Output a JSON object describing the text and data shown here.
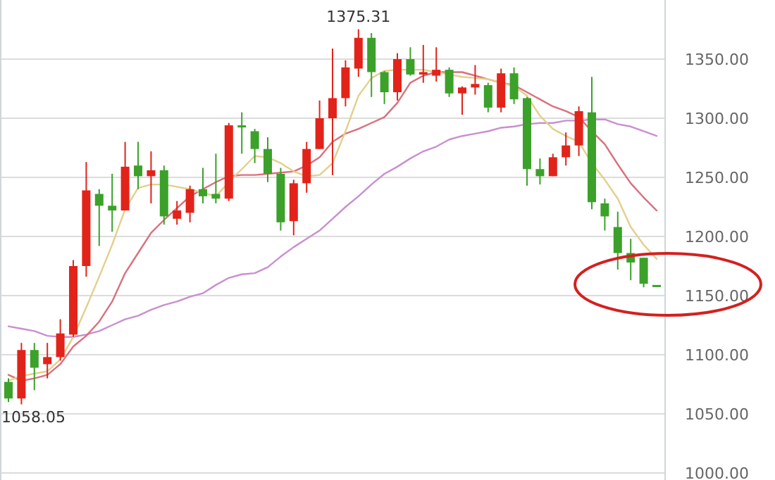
{
  "chart_data": {
    "type": "candlestick",
    "categories": [
      null,
      null,
      null,
      null,
      null,
      null,
      null,
      null,
      null,
      null,
      null,
      null,
      null,
      null,
      null,
      null,
      null,
      null,
      null,
      null,
      null,
      null,
      null,
      null,
      null,
      null,
      null,
      null,
      null,
      null,
      null,
      null,
      null,
      null,
      null,
      null,
      null,
      null,
      null,
      null,
      null,
      null,
      null,
      null,
      null,
      null,
      null,
      null,
      null,
      null,
      null
    ],
    "ohlc": [
      [
        1077,
        1080,
        1060,
        1063
      ],
      [
        1063,
        1110,
        1058.05,
        1104
      ],
      [
        1104,
        1110,
        1070,
        1089
      ],
      [
        1092,
        1110,
        1080,
        1098
      ],
      [
        1098,
        1130,
        1095,
        1118
      ],
      [
        1117,
        1180,
        1115,
        1175
      ],
      [
        1175,
        1263,
        1166,
        1239
      ],
      [
        1236,
        1240,
        1192,
        1226
      ],
      [
        1226,
        1253,
        1204,
        1222
      ],
      [
        1222,
        1280,
        1222,
        1259
      ],
      [
        1260,
        1280,
        1240,
        1251
      ],
      [
        1251,
        1272,
        1228,
        1256
      ],
      [
        1256,
        1260,
        1210,
        1217
      ],
      [
        1215,
        1230,
        1210,
        1222
      ],
      [
        1220,
        1243,
        1212,
        1240
      ],
      [
        1240,
        1258,
        1228,
        1234
      ],
      [
        1236,
        1270,
        1228,
        1232
      ],
      [
        1232,
        1296,
        1230,
        1294
      ],
      [
        1294,
        1305,
        1270,
        1293
      ],
      [
        1289,
        1291,
        1262,
        1274
      ],
      [
        1274,
        1284,
        1246,
        1253
      ],
      [
        1253,
        1258,
        1205,
        1212
      ],
      [
        1213,
        1248,
        1201,
        1245
      ],
      [
        1245,
        1280,
        1237,
        1274
      ],
      [
        1274,
        1315,
        1274,
        1300
      ],
      [
        1300,
        1359,
        1252,
        1317
      ],
      [
        1317,
        1349,
        1310,
        1343
      ],
      [
        1342,
        1375.31,
        1335,
        1368
      ],
      [
        1368,
        1372,
        1318,
        1339
      ],
      [
        1339,
        1340,
        1312,
        1322
      ],
      [
        1322,
        1355,
        1315,
        1350
      ],
      [
        1350,
        1360,
        1336,
        1337
      ],
      [
        1337,
        1362,
        1330,
        1339
      ],
      [
        1336,
        1360,
        1331,
        1341
      ],
      [
        1341,
        1343,
        1318,
        1321
      ],
      [
        1321,
        1327,
        1303,
        1326
      ],
      [
        1326,
        1345,
        1320,
        1329
      ],
      [
        1328,
        1330,
        1305,
        1309
      ],
      [
        1309,
        1342,
        1305,
        1338
      ],
      [
        1338,
        1343,
        1312,
        1316
      ],
      [
        1317,
        1318,
        1243,
        1257
      ],
      [
        1257,
        1266,
        1244,
        1251
      ],
      [
        1251,
        1270,
        1251,
        1267
      ],
      [
        1267,
        1288,
        1260,
        1277
      ],
      [
        1277,
        1310,
        1268,
        1306
      ],
      [
        1305,
        1335,
        1223,
        1229
      ],
      [
        1228,
        1232,
        1205,
        1217
      ],
      [
        1208,
        1221,
        1172,
        1186
      ],
      [
        1186,
        1198,
        1163,
        1178
      ],
      [
        1182,
        1182,
        1157,
        1160
      ],
      [
        1159,
        1159,
        1159,
        1159
      ]
    ],
    "colors": [
      "#3ba12a",
      "#e2231a",
      "#3ba12a",
      "#e2231a",
      "#e2231a",
      "#e2231a",
      "#e2231a",
      "#3ba12a",
      "#3ba12a",
      "#e2231a",
      "#3ba12a",
      "#e2231a",
      "#3ba12a",
      "#e2231a",
      "#e2231a",
      "#3ba12a",
      "#3ba12a",
      "#e2231a",
      "#3ba12a",
      "#3ba12a",
      "#3ba12a",
      "#3ba12a",
      "#e2231a",
      "#e2231a",
      "#e2231a",
      "#e2231a",
      "#e2231a",
      "#e2231a",
      "#3ba12a",
      "#3ba12a",
      "#e2231a",
      "#3ba12a",
      "#e2231a",
      "#e2231a",
      "#3ba12a",
      "#e2231a",
      "#e2231a",
      "#3ba12a",
      "#e2231a",
      "#3ba12a",
      "#3ba12a",
      "#3ba12a",
      "#e2231a",
      "#e2231a",
      "#e2231a",
      "#3ba12a",
      "#3ba12a",
      "#3ba12a",
      "#3ba12a",
      "#3ba12a",
      "#3ba12a"
    ],
    "series": [
      {
        "type": "line",
        "color": "#c98fd0",
        "values": [
          1124,
          1122,
          1120,
          1116,
          1115,
          1115,
          1117,
          1120,
          1125,
          1130,
          1133,
          1138,
          1142,
          1145,
          1149,
          1152,
          1159,
          1165,
          1168,
          1169,
          1174,
          1183,
          1191,
          1198,
          1205,
          1215,
          1225,
          1234,
          1244,
          1253,
          1259,
          1266,
          1272,
          1276,
          1282,
          1285,
          1287,
          1289,
          1292,
          1293,
          1295,
          1296,
          1296,
          1298,
          1298,
          1299,
          1299,
          1295,
          1293,
          1289,
          1285
        ]
      },
      {
        "type": "line",
        "color": "#d9707c",
        "values": [
          1083,
          1078,
          1080,
          1083,
          1092,
          1107,
          1116,
          1128,
          1145,
          1169,
          1186,
          1203,
          1214,
          1224,
          1234,
          1240,
          1246,
          1251,
          1252,
          1252,
          1253,
          1254,
          1255,
          1260,
          1267,
          1280,
          1287,
          1291,
          1296,
          1301,
          1313,
          1330,
          1336,
          1339,
          1339,
          1339,
          1336,
          1333,
          1330,
          1328,
          1322,
          1316,
          1310,
          1306,
          1301,
          1289,
          1278,
          1261,
          1245,
          1233,
          1222
        ]
      },
      {
        "type": "line",
        "color": "#e3cf8c",
        "values": [
          1078,
          1082,
          1084,
          1086,
          1096,
          1115,
          1140,
          1166,
          1193,
          1223,
          1241,
          1244,
          1244,
          1242,
          1240,
          1237,
          1234,
          1246,
          1257,
          1268,
          1267,
          1262,
          1255,
          1251,
          1252,
          1262,
          1289,
          1319,
          1334,
          1340,
          1341,
          1341,
          1341,
          1339,
          1337,
          1335,
          1334,
          1333,
          1330,
          1327,
          1319,
          1302,
          1291,
          1285,
          1280,
          1262,
          1248,
          1232,
          1208,
          1193,
          1181
        ]
      }
    ],
    "ylim": [
      1000,
      1400
    ],
    "yticks": [
      {
        "value": 1000,
        "label": "1000.00"
      },
      {
        "value": 1050,
        "label": "1050.00"
      },
      {
        "value": 1100,
        "label": "1100.00"
      },
      {
        "value": 1150,
        "label": "1150.00"
      },
      {
        "value": 1200,
        "label": "1200.00"
      },
      {
        "value": 1250,
        "label": "1250.00"
      },
      {
        "value": 1300,
        "label": "1300.00"
      },
      {
        "value": 1350,
        "label": "1350.00"
      }
    ],
    "grid": "y",
    "tick_labels": "y",
    "annotations": [
      {
        "text": "1375.31",
        "y": 1375.31
      },
      "1058.05"
    ]
  }
}
